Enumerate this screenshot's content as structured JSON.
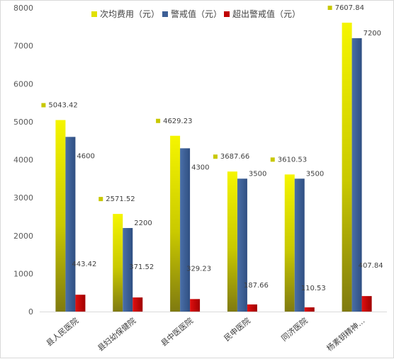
{
  "chart_data": {
    "type": "bar",
    "categories": [
      "县人民医院",
      "县妇幼保健院",
      "县中医医院",
      "民申医院",
      "同济医院",
      "杨素钥精神…"
    ],
    "series": [
      {
        "name": "次均费用（元）",
        "values": [
          5043.42,
          2571.52,
          4629.23,
          3687.66,
          3610.53,
          7607.84
        ],
        "labels": [
          "5043.42",
          "2571.52",
          "4629.23",
          "3687.66",
          "3610.53",
          "7607.84"
        ],
        "color": "#e8e800"
      },
      {
        "name": "警戒值（元）",
        "values": [
          4600,
          2200,
          4300,
          3500,
          3500,
          7200
        ],
        "labels": [
          "4600",
          "2200",
          "4300",
          "3500",
          "3500",
          "7200"
        ],
        "color": "#3d5f96"
      },
      {
        "name": "超出警戒值（元）",
        "values": [
          443.42,
          371.52,
          329.23,
          187.66,
          110.53,
          407.84
        ],
        "labels": [
          "443.42",
          "371.52",
          "329.23",
          "187.66",
          "110.53",
          "407.84"
        ],
        "color": "#c00000"
      }
    ],
    "y_ticks": [
      "0",
      "1000",
      "2000",
      "3000",
      "4000",
      "5000",
      "6000",
      "7000",
      "8000"
    ],
    "ylim": [
      0,
      8000
    ],
    "grid": false,
    "legend_position": "top",
    "xlabel": "",
    "ylabel": "",
    "title": ""
  }
}
